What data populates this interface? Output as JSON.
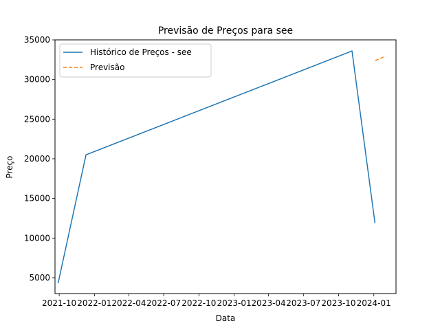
{
  "chart_data": {
    "type": "line",
    "title": "Previsão de Preços para see",
    "xlabel": "Data",
    "ylabel": "Preço",
    "xlim": [
      "2021-09-20",
      "2024-02-28"
    ],
    "ylim": [
      3000,
      35000
    ],
    "x_ticks": [
      {
        "date": "2021-10-01",
        "label": "2021-10"
      },
      {
        "date": "2022-01-01",
        "label": "2022-01"
      },
      {
        "date": "2022-04-01",
        "label": "2022-04"
      },
      {
        "date": "2022-07-01",
        "label": "2022-07"
      },
      {
        "date": "2022-10-01",
        "label": "2022-10"
      },
      {
        "date": "2023-01-01",
        "label": "2023-01"
      },
      {
        "date": "2023-04-01",
        "label": "2023-04"
      },
      {
        "date": "2023-07-01",
        "label": "2023-07"
      },
      {
        "date": "2023-10-01",
        "label": "2023-10"
      },
      {
        "date": "2024-01-01",
        "label": "2024-01"
      }
    ],
    "y_ticks": [
      5000,
      10000,
      15000,
      20000,
      25000,
      30000,
      35000
    ],
    "grid": false,
    "legend_position": "top-left",
    "series": [
      {
        "name": "Histórico de Preços - see",
        "color": "#1f77b4",
        "style": "solid",
        "points": [
          {
            "x": "2021-09-28",
            "y": 4300
          },
          {
            "x": "2021-12-10",
            "y": 20500
          },
          {
            "x": "2023-11-05",
            "y": 33600
          },
          {
            "x": "2024-01-04",
            "y": 11900
          }
        ]
      },
      {
        "name": "Previsão",
        "color": "#ff7f0e",
        "style": "dashed",
        "points": [
          {
            "x": "2024-01-05",
            "y": 32400
          },
          {
            "x": "2024-02-01",
            "y": 32950
          }
        ]
      }
    ]
  }
}
